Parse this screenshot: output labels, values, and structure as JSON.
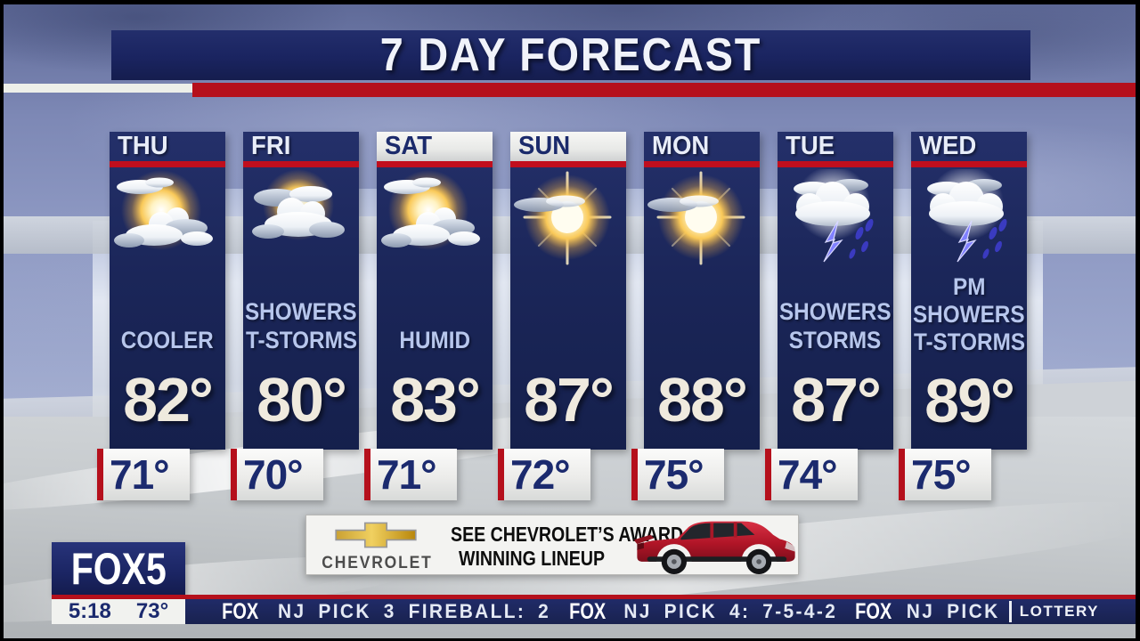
{
  "title": {
    "text": "7 DAY FORECAST"
  },
  "forecast": {
    "days": [
      {
        "name": "THU",
        "highlighted": false,
        "icon": "partly-sunny",
        "condition": [
          "COOLER"
        ],
        "high": "82°",
        "low": "71°"
      },
      {
        "name": "FRI",
        "highlighted": false,
        "icon": "sun-and-clouds",
        "condition": [
          "SHOWERS",
          "T-STORMS"
        ],
        "high": "80°",
        "low": "70°"
      },
      {
        "name": "SAT",
        "highlighted": true,
        "icon": "partly-sunny",
        "condition": [
          "HUMID"
        ],
        "high": "83°",
        "low": "71°"
      },
      {
        "name": "SUN",
        "highlighted": true,
        "icon": "mostly-sunny",
        "condition": [],
        "high": "87°",
        "low": "72°"
      },
      {
        "name": "MON",
        "highlighted": false,
        "icon": "mostly-sunny",
        "condition": [],
        "high": "88°",
        "low": "75°"
      },
      {
        "name": "TUE",
        "highlighted": false,
        "icon": "thunderstorm",
        "condition": [
          "SHOWERS",
          "STORMS"
        ],
        "high": "87°",
        "low": "74°"
      },
      {
        "name": "WED",
        "highlighted": false,
        "icon": "thunderstorm",
        "condition": [
          "PM",
          "SHOWERS",
          "T-STORMS"
        ],
        "high": "89°",
        "low": "75°"
      }
    ]
  },
  "ad": {
    "brand": "CHEVROLET",
    "line1": "SEE CHEVROLET’S AWARD",
    "line2": "WINNING LINEUP"
  },
  "station": {
    "logo": "FOX5",
    "time": "5:18",
    "temp": "73°"
  },
  "ticker": {
    "items": [
      {
        "kind": "fox",
        "label": "FOX"
      },
      {
        "kind": "text",
        "label": "NJ PICK 3 FIREBALL: 2"
      },
      {
        "kind": "fox",
        "label": "FOX"
      },
      {
        "kind": "text",
        "label": "NJ PICK 4: 7-5-4-2"
      },
      {
        "kind": "fox",
        "label": "FOX"
      },
      {
        "kind": "text",
        "label": "NJ PICK"
      },
      {
        "kind": "divider",
        "label": ""
      },
      {
        "kind": "lottery",
        "label": "LOTTERY"
      }
    ]
  },
  "colors": {
    "navy": "#1b2462",
    "red": "#b5101c",
    "cream_text": "#efeade",
    "condition_text": "#b7c6ec",
    "low_temp_text": "#1b2a6e"
  }
}
